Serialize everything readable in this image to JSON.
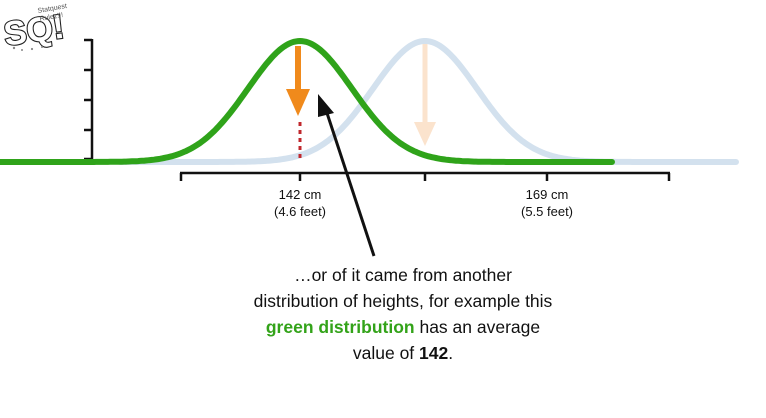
{
  "logo": {
    "text": "SQ!",
    "tagline_lines": [
      "Statquest",
      "Rulez!!!"
    ]
  },
  "x_axis": {
    "tick_labels": [
      {
        "value": "142 cm",
        "sub": "(4.6 feet)"
      },
      {
        "value": "169 cm",
        "sub": "(5.5 feet)"
      }
    ]
  },
  "caption": {
    "line1": "…or of it came from another",
    "line2": "distribution of heights, for example this",
    "line3_highlight": "green distribution",
    "line3_rest": " has an average",
    "line4_prefix": "value of ",
    "line4_value": "142",
    "line4_suffix": "."
  },
  "colors": {
    "green_curve": "#2fa31a",
    "blue_curve": "#d3e1ee",
    "orange_arrow": "#f08a1c",
    "faded_orange_arrow": "#fbe3cd",
    "red_dotted_line": "#c0282d",
    "axis": "#111111"
  }
}
